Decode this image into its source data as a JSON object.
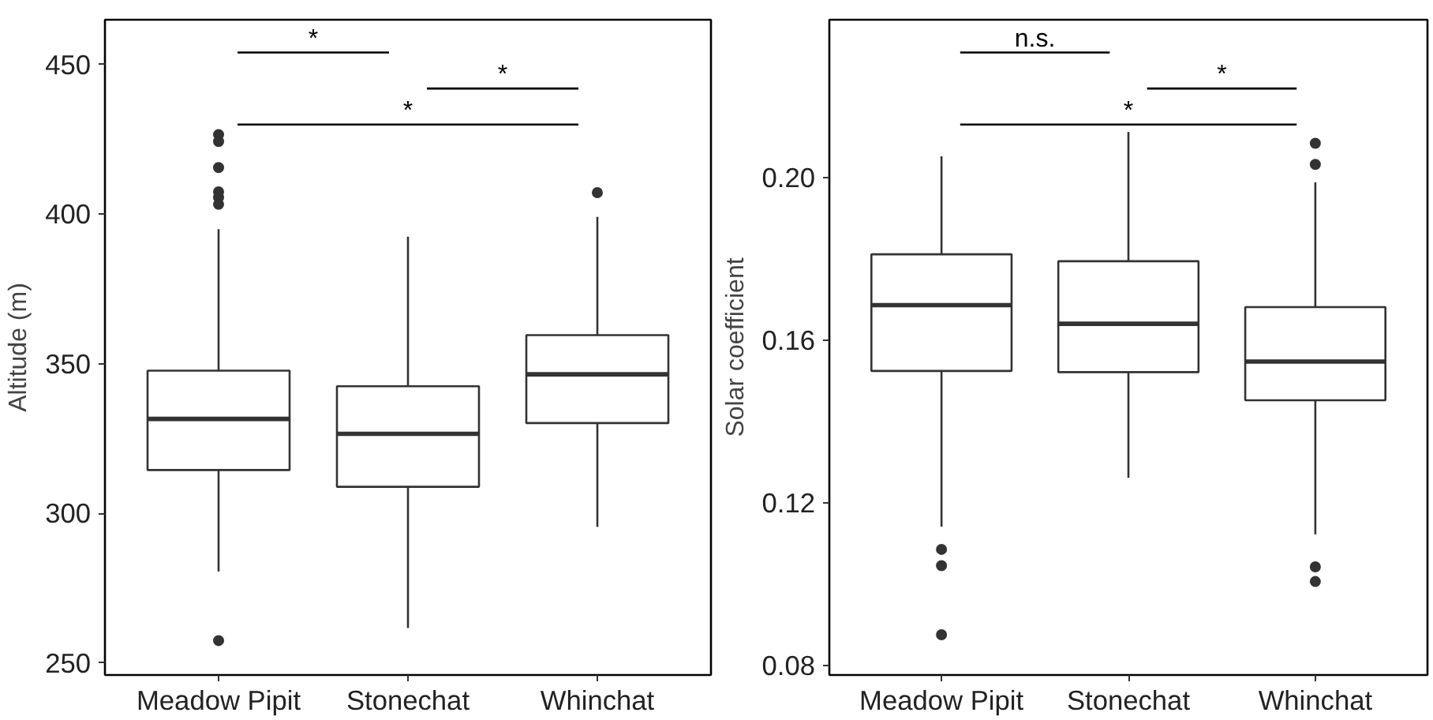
{
  "chart_data": [
    {
      "type": "box",
      "ylabel": "Altitude (m)",
      "categories": [
        "Meadow Pipit",
        "Stonechat",
        "Whinchat"
      ],
      "boxes": [
        {
          "low": 280.6,
          "q1": 314.5,
          "median": 331.6,
          "q3": 347.7,
          "high": 395,
          "outliers": [
            426.6,
            424.3,
            415.6,
            407.5,
            405.6,
            403.3,
            257.5
          ]
        },
        {
          "low": 261.7,
          "q1": 308.9,
          "median": 326.6,
          "q3": 342.5,
          "high": 392.5
        },
        {
          "low": 295.5,
          "q1": 330.2,
          "median": 346.5,
          "q3": 359.6,
          "high": 399.1,
          "outliers": [
            407.2
          ]
        }
      ],
      "ylim": [
        246,
        465
      ],
      "yticks": [
        250,
        300,
        350,
        400,
        450
      ],
      "grid": false,
      "annotations": [
        "*",
        "*",
        "*"
      ]
    },
    {
      "type": "box",
      "ylabel": "Solar coefficient",
      "categories": [
        "Meadow Pipit",
        "Stonechat",
        "Whinchat"
      ],
      "boxes": [
        {
          "low": 0.1141,
          "q1": 0.1524,
          "median": 0.1686,
          "q3": 0.1811,
          "high": 0.2052,
          "outliers": [
            0.1085,
            0.1045,
            0.0875
          ]
        },
        {
          "low": 0.1261,
          "q1": 0.1521,
          "median": 0.164,
          "q3": 0.1794,
          "high": 0.2112
        },
        {
          "low": 0.1122,
          "q1": 0.1452,
          "median": 0.1547,
          "q3": 0.1681,
          "high": 0.1988,
          "outliers": [
            0.2084,
            0.2032,
            0.1042,
            0.1006
          ]
        }
      ],
      "ylim": [
        0.0776,
        0.2388
      ],
      "yticks": [
        {
          "value": 0.08,
          "label": "0.08"
        },
        {
          "value": 0.12,
          "label": "0.12"
        },
        {
          "value": 0.16,
          "label": "0.16"
        },
        {
          "value": 0.2,
          "label": "0.20"
        }
      ],
      "grid": false,
      "annotations": [
        "n.s.",
        "*",
        "*"
      ]
    }
  ]
}
